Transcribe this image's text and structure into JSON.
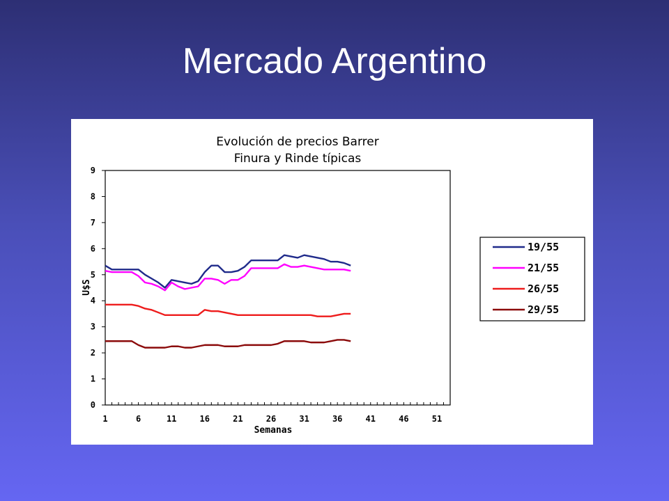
{
  "slide": {
    "title": "Mercado Argentino"
  },
  "chart_data": {
    "type": "line",
    "title": [
      "Evolución de precios Barrer",
      "Finura y Rinde típicas"
    ],
    "xlabel": "Semanas",
    "ylabel": "U$S",
    "xlim": [
      1,
      53
    ],
    "ylim": [
      0,
      9
    ],
    "x_ticks": [
      1,
      6,
      11,
      16,
      21,
      26,
      31,
      36,
      41,
      46,
      51
    ],
    "y_ticks": [
      0,
      1,
      2,
      3,
      4,
      5,
      6,
      7,
      8,
      9
    ],
    "grid": false,
    "legend_position": "right",
    "x": [
      1,
      2,
      3,
      4,
      5,
      6,
      7,
      8,
      9,
      10,
      11,
      12,
      13,
      14,
      15,
      16,
      17,
      18,
      19,
      20,
      21,
      22,
      23,
      24,
      25,
      26,
      27,
      28,
      29,
      30,
      31,
      32,
      33,
      34,
      35,
      36,
      37,
      38
    ],
    "series": [
      {
        "name": "19/55",
        "color": "#1f2a8a",
        "values": [
          5.35,
          5.2,
          5.2,
          5.2,
          5.2,
          5.2,
          5.0,
          4.85,
          4.7,
          4.5,
          4.8,
          4.75,
          4.7,
          4.65,
          4.75,
          5.1,
          5.35,
          5.35,
          5.1,
          5.1,
          5.15,
          5.3,
          5.55,
          5.55,
          5.55,
          5.55,
          5.55,
          5.75,
          5.7,
          5.65,
          5.75,
          5.7,
          5.65,
          5.6,
          5.5,
          5.5,
          5.45,
          5.35
        ]
      },
      {
        "name": "21/55",
        "color": "#ff00ff",
        "values": [
          5.15,
          5.1,
          5.1,
          5.1,
          5.1,
          4.95,
          4.7,
          4.65,
          4.55,
          4.4,
          4.7,
          4.55,
          4.45,
          4.5,
          4.55,
          4.85,
          4.85,
          4.8,
          4.65,
          4.8,
          4.8,
          4.95,
          5.25,
          5.25,
          5.25,
          5.25,
          5.25,
          5.4,
          5.3,
          5.3,
          5.35,
          5.3,
          5.25,
          5.2,
          5.2,
          5.2,
          5.2,
          5.15
        ]
      },
      {
        "name": "26/55",
        "color": "#ee1c1c",
        "values": [
          3.85,
          3.85,
          3.85,
          3.85,
          3.85,
          3.8,
          3.7,
          3.65,
          3.55,
          3.45,
          3.45,
          3.45,
          3.45,
          3.45,
          3.45,
          3.65,
          3.6,
          3.6,
          3.55,
          3.5,
          3.45,
          3.45,
          3.45,
          3.45,
          3.45,
          3.45,
          3.45,
          3.45,
          3.45,
          3.45,
          3.45,
          3.45,
          3.4,
          3.4,
          3.4,
          3.45,
          3.5,
          3.5
        ]
      },
      {
        "name": "29/55",
        "color": "#8b0a0a",
        "values": [
          2.45,
          2.45,
          2.45,
          2.45,
          2.45,
          2.3,
          2.2,
          2.2,
          2.2,
          2.2,
          2.25,
          2.25,
          2.2,
          2.2,
          2.25,
          2.3,
          2.3,
          2.3,
          2.25,
          2.25,
          2.25,
          2.3,
          2.3,
          2.3,
          2.3,
          2.3,
          2.35,
          2.45,
          2.45,
          2.45,
          2.45,
          2.4,
          2.4,
          2.4,
          2.45,
          2.5,
          2.5,
          2.45
        ]
      }
    ]
  }
}
